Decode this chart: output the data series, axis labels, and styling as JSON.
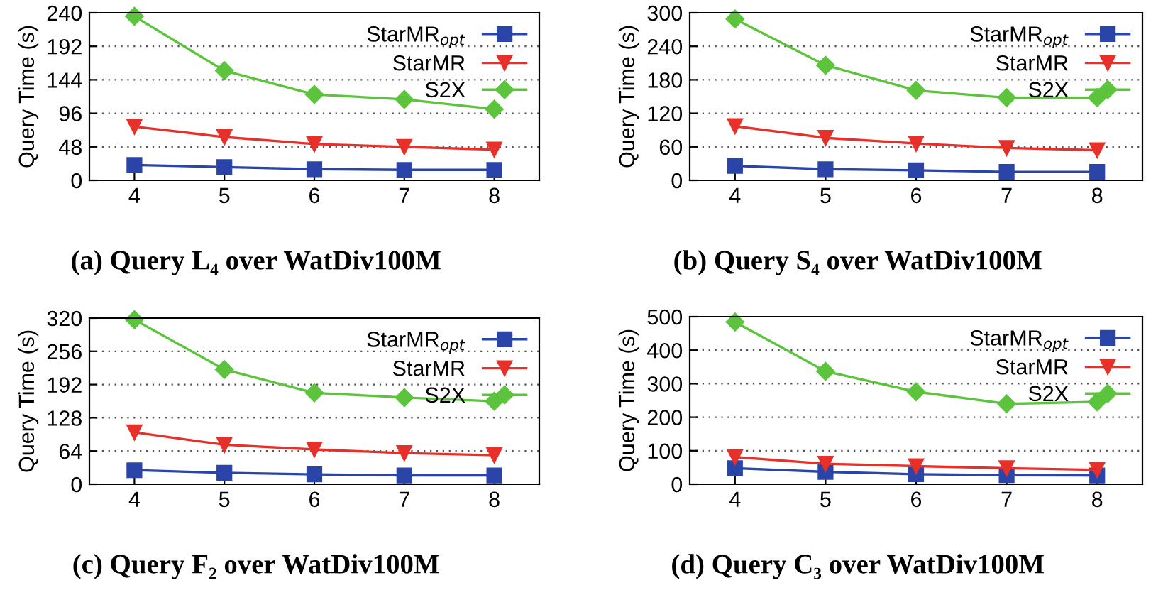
{
  "chart_data": [
    {
      "type": "line",
      "title": "(a) Query L₄ over WatDiv100M",
      "ylabel": "Query Time (s)",
      "x": [
        4,
        5,
        6,
        7,
        8
      ],
      "xlim": [
        3.5,
        8.5
      ],
      "xticks": [
        4,
        5,
        6,
        7,
        8
      ],
      "ylim": [
        0,
        240
      ],
      "yticks": [
        0,
        48,
        96,
        144,
        192,
        240
      ],
      "grid": "y",
      "legend": "top right",
      "series": [
        {
          "name": "StarMR$_{opt}$",
          "color": "#2a44a8",
          "marker": "square",
          "values": [
            22,
            19,
            16,
            15,
            15
          ]
        },
        {
          "name": "StarMR",
          "color": "#e8302a",
          "marker": "triangle",
          "values": [
            77,
            62,
            52,
            48,
            44
          ]
        },
        {
          "name": "S2X",
          "color": "#5cc43c",
          "marker": "diamond",
          "values": [
            235,
            157,
            123,
            116,
            102
          ]
        }
      ]
    },
    {
      "type": "line",
      "title": "(b) Query S₄ over WatDiv100M",
      "ylabel": "Query Time (s)",
      "x": [
        4,
        5,
        6,
        7,
        8
      ],
      "xlim": [
        3.5,
        8.5
      ],
      "xticks": [
        4,
        5,
        6,
        7,
        8
      ],
      "ylim": [
        0,
        300
      ],
      "yticks": [
        0,
        60,
        120,
        180,
        240,
        300
      ],
      "grid": "y",
      "legend": "top right",
      "series": [
        {
          "name": "StarMR$_{opt}$",
          "color": "#2a44a8",
          "marker": "square",
          "values": [
            26,
            20,
            18,
            15,
            15
          ]
        },
        {
          "name": "StarMR",
          "color": "#e8302a",
          "marker": "triangle",
          "values": [
            97,
            76,
            66,
            58,
            54
          ]
        },
        {
          "name": "S2X",
          "color": "#5cc43c",
          "marker": "diamond",
          "values": [
            289,
            206,
            161,
            148,
            148
          ]
        }
      ]
    },
    {
      "type": "line",
      "title": "(c) Query F₂ over WatDiv100M",
      "ylabel": "Query Time (s)",
      "x": [
        4,
        5,
        6,
        7,
        8
      ],
      "xlim": [
        3.5,
        8.5
      ],
      "xticks": [
        4,
        5,
        6,
        7,
        8
      ],
      "ylim": [
        0,
        320
      ],
      "yticks": [
        0,
        64,
        128,
        192,
        256,
        320
      ],
      "grid": "y",
      "legend": "top right",
      "series": [
        {
          "name": "StarMR$_{opt}$",
          "color": "#2a44a8",
          "marker": "square",
          "values": [
            27,
            22,
            19,
            17,
            17
          ]
        },
        {
          "name": "StarMR",
          "color": "#e8302a",
          "marker": "triangle",
          "values": [
            100,
            76,
            67,
            60,
            56
          ]
        },
        {
          "name": "S2X",
          "color": "#5cc43c",
          "marker": "diamond",
          "values": [
            317,
            221,
            176,
            167,
            160
          ]
        }
      ]
    },
    {
      "type": "line",
      "title": "(d) Query C₃ over WatDiv100M",
      "ylabel": "Query Time (s)",
      "x": [
        4,
        5,
        6,
        7,
        8
      ],
      "xlim": [
        3.5,
        8.5
      ],
      "xticks": [
        4,
        5,
        6,
        7,
        8
      ],
      "ylim": [
        0,
        500
      ],
      "yticks": [
        0,
        100,
        200,
        300,
        400,
        500
      ],
      "grid": "y",
      "legend": "top right",
      "series": [
        {
          "name": "StarMR$_{opt}$",
          "color": "#2a44a8",
          "marker": "square",
          "values": [
            48,
            37,
            30,
            27,
            26
          ]
        },
        {
          "name": "StarMR",
          "color": "#e8302a",
          "marker": "triangle",
          "values": [
            81,
            61,
            54,
            48,
            43
          ]
        },
        {
          "name": "S2X",
          "color": "#5cc43c",
          "marker": "diamond",
          "values": [
            484,
            337,
            276,
            240,
            246
          ]
        }
      ]
    }
  ]
}
